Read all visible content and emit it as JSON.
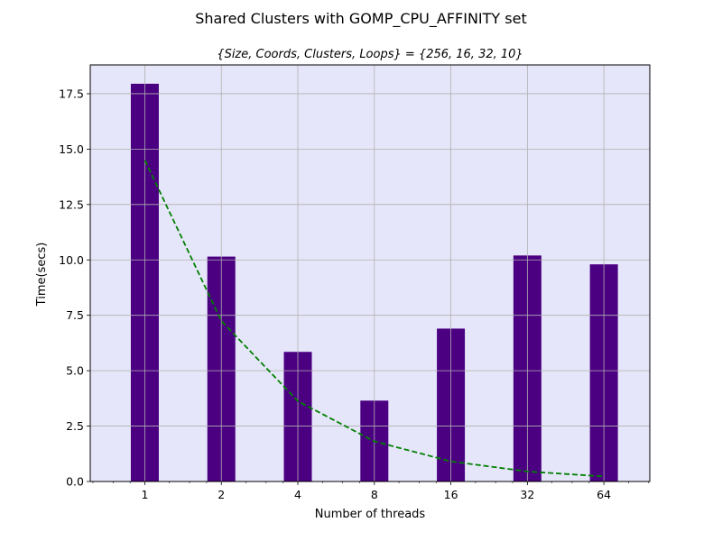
{
  "chart_data": {
    "type": "bar",
    "title": "Shared Clusters with GOMP_CPU_AFFINITY set",
    "subtitle": "{Size, Coords, Clusters, Loops} = {256, 16, 32, 10}",
    "xlabel": "Number of threads",
    "ylabel": "Time(secs)",
    "x_scale": "log2",
    "categories": [
      "1",
      "2",
      "4",
      "8",
      "16",
      "32",
      "64"
    ],
    "x": [
      1,
      2,
      4,
      8,
      16,
      32,
      64
    ],
    "values": [
      17.95,
      10.15,
      5.85,
      3.65,
      6.9,
      10.2,
      9.8
    ],
    "ideal_speedup_line": {
      "style": "dashed",
      "x": [
        1,
        2,
        4,
        8,
        16,
        32,
        64
      ],
      "y": [
        14.5,
        7.25,
        3.625,
        1.8125,
        0.90625,
        0.453125,
        0.2265625
      ]
    },
    "xlim": [
      0.61,
      97
    ],
    "ylim": [
      0,
      18.8
    ],
    "yticks": [
      0.0,
      2.5,
      5.0,
      7.5,
      10.0,
      12.5,
      15.0,
      17.5
    ],
    "ytick_labels": [
      "0.0",
      "2.5",
      "5.0",
      "7.5",
      "10.0",
      "12.5",
      "15.0",
      "17.5"
    ],
    "grid": true,
    "colors": {
      "bar": "#4b0082",
      "line": "#008000",
      "plot_background": "#e6e6fa",
      "grid": "#b0b0b0"
    }
  }
}
